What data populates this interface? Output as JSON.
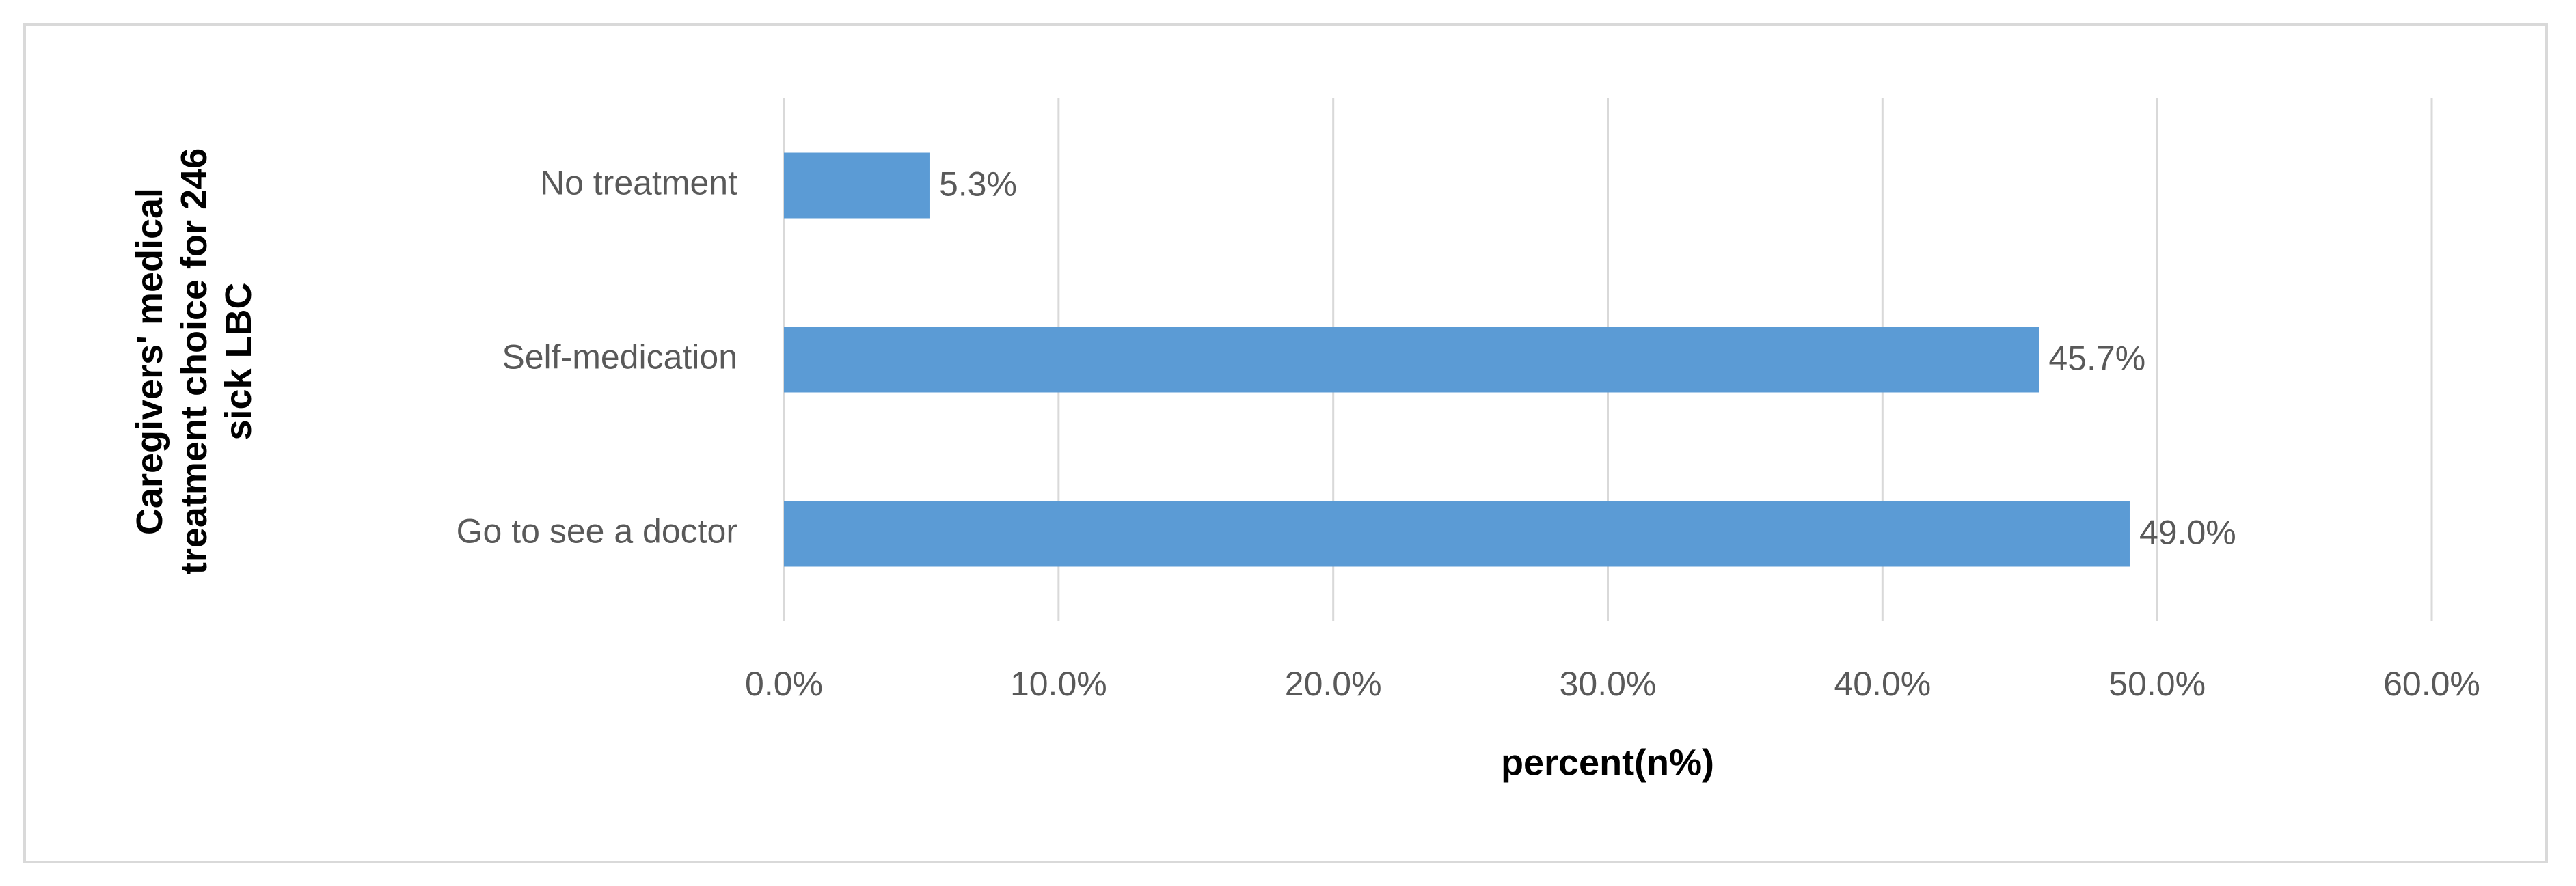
{
  "chart_data": {
    "type": "bar",
    "orientation": "horizontal",
    "x_label": "percent(n%)",
    "y_label": "Caregivers' medical treatment choice for 246 sick LBC",
    "categories": [
      "No treatment",
      "Self-medication",
      "Go to see a doctor"
    ],
    "values": [
      5.3,
      45.7,
      49.0
    ],
    "value_labels": [
      "5.3%",
      "45.7%",
      "49.0%"
    ],
    "color": "#5b9bd5",
    "xlim": [
      0,
      60
    ],
    "xticks": [
      {
        "value": 0,
        "label": "0.0%"
      },
      {
        "value": 10,
        "label": "10.0%"
      },
      {
        "value": 20,
        "label": "20.0%"
      },
      {
        "value": 30,
        "label": "30.0%"
      },
      {
        "value": 40,
        "label": "40.0%"
      },
      {
        "value": 50,
        "label": "50.0%"
      },
      {
        "value": 60,
        "label": "60.0%"
      }
    ],
    "grid": true
  }
}
